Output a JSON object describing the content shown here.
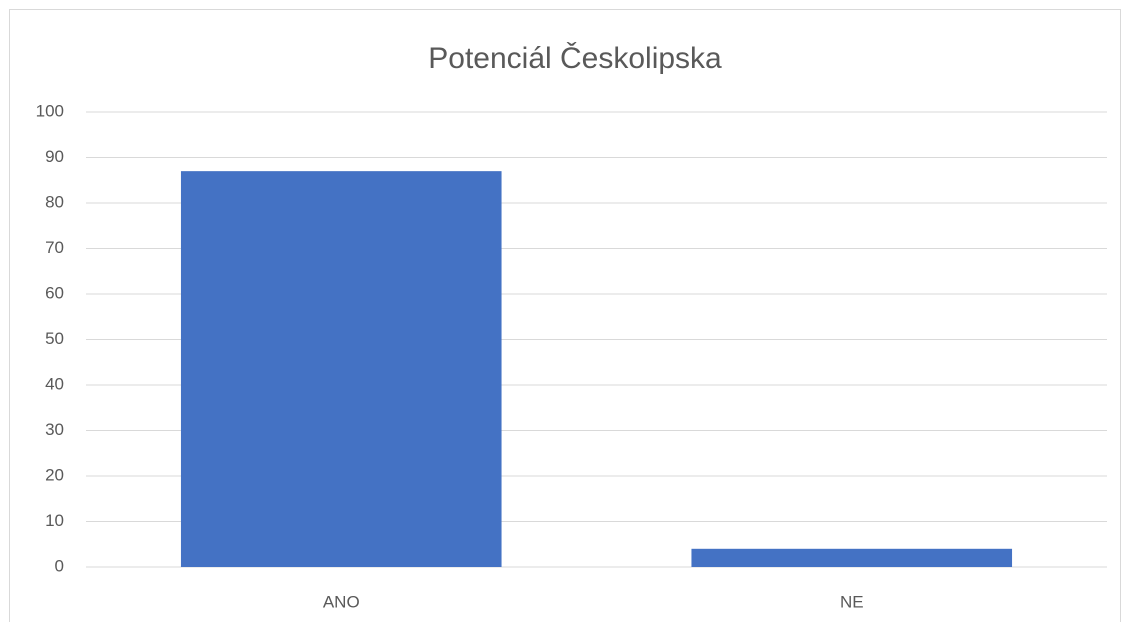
{
  "chart_data": {
    "type": "bar",
    "title": "Potenciál Českolipska",
    "categories": [
      "ANO",
      "NE"
    ],
    "values": [
      87,
      4
    ],
    "color": "#4472c4",
    "ylim": [
      0,
      100
    ],
    "yticks": [
      0,
      10,
      20,
      30,
      40,
      50,
      60,
      70,
      80,
      90,
      100
    ],
    "grid": true
  }
}
